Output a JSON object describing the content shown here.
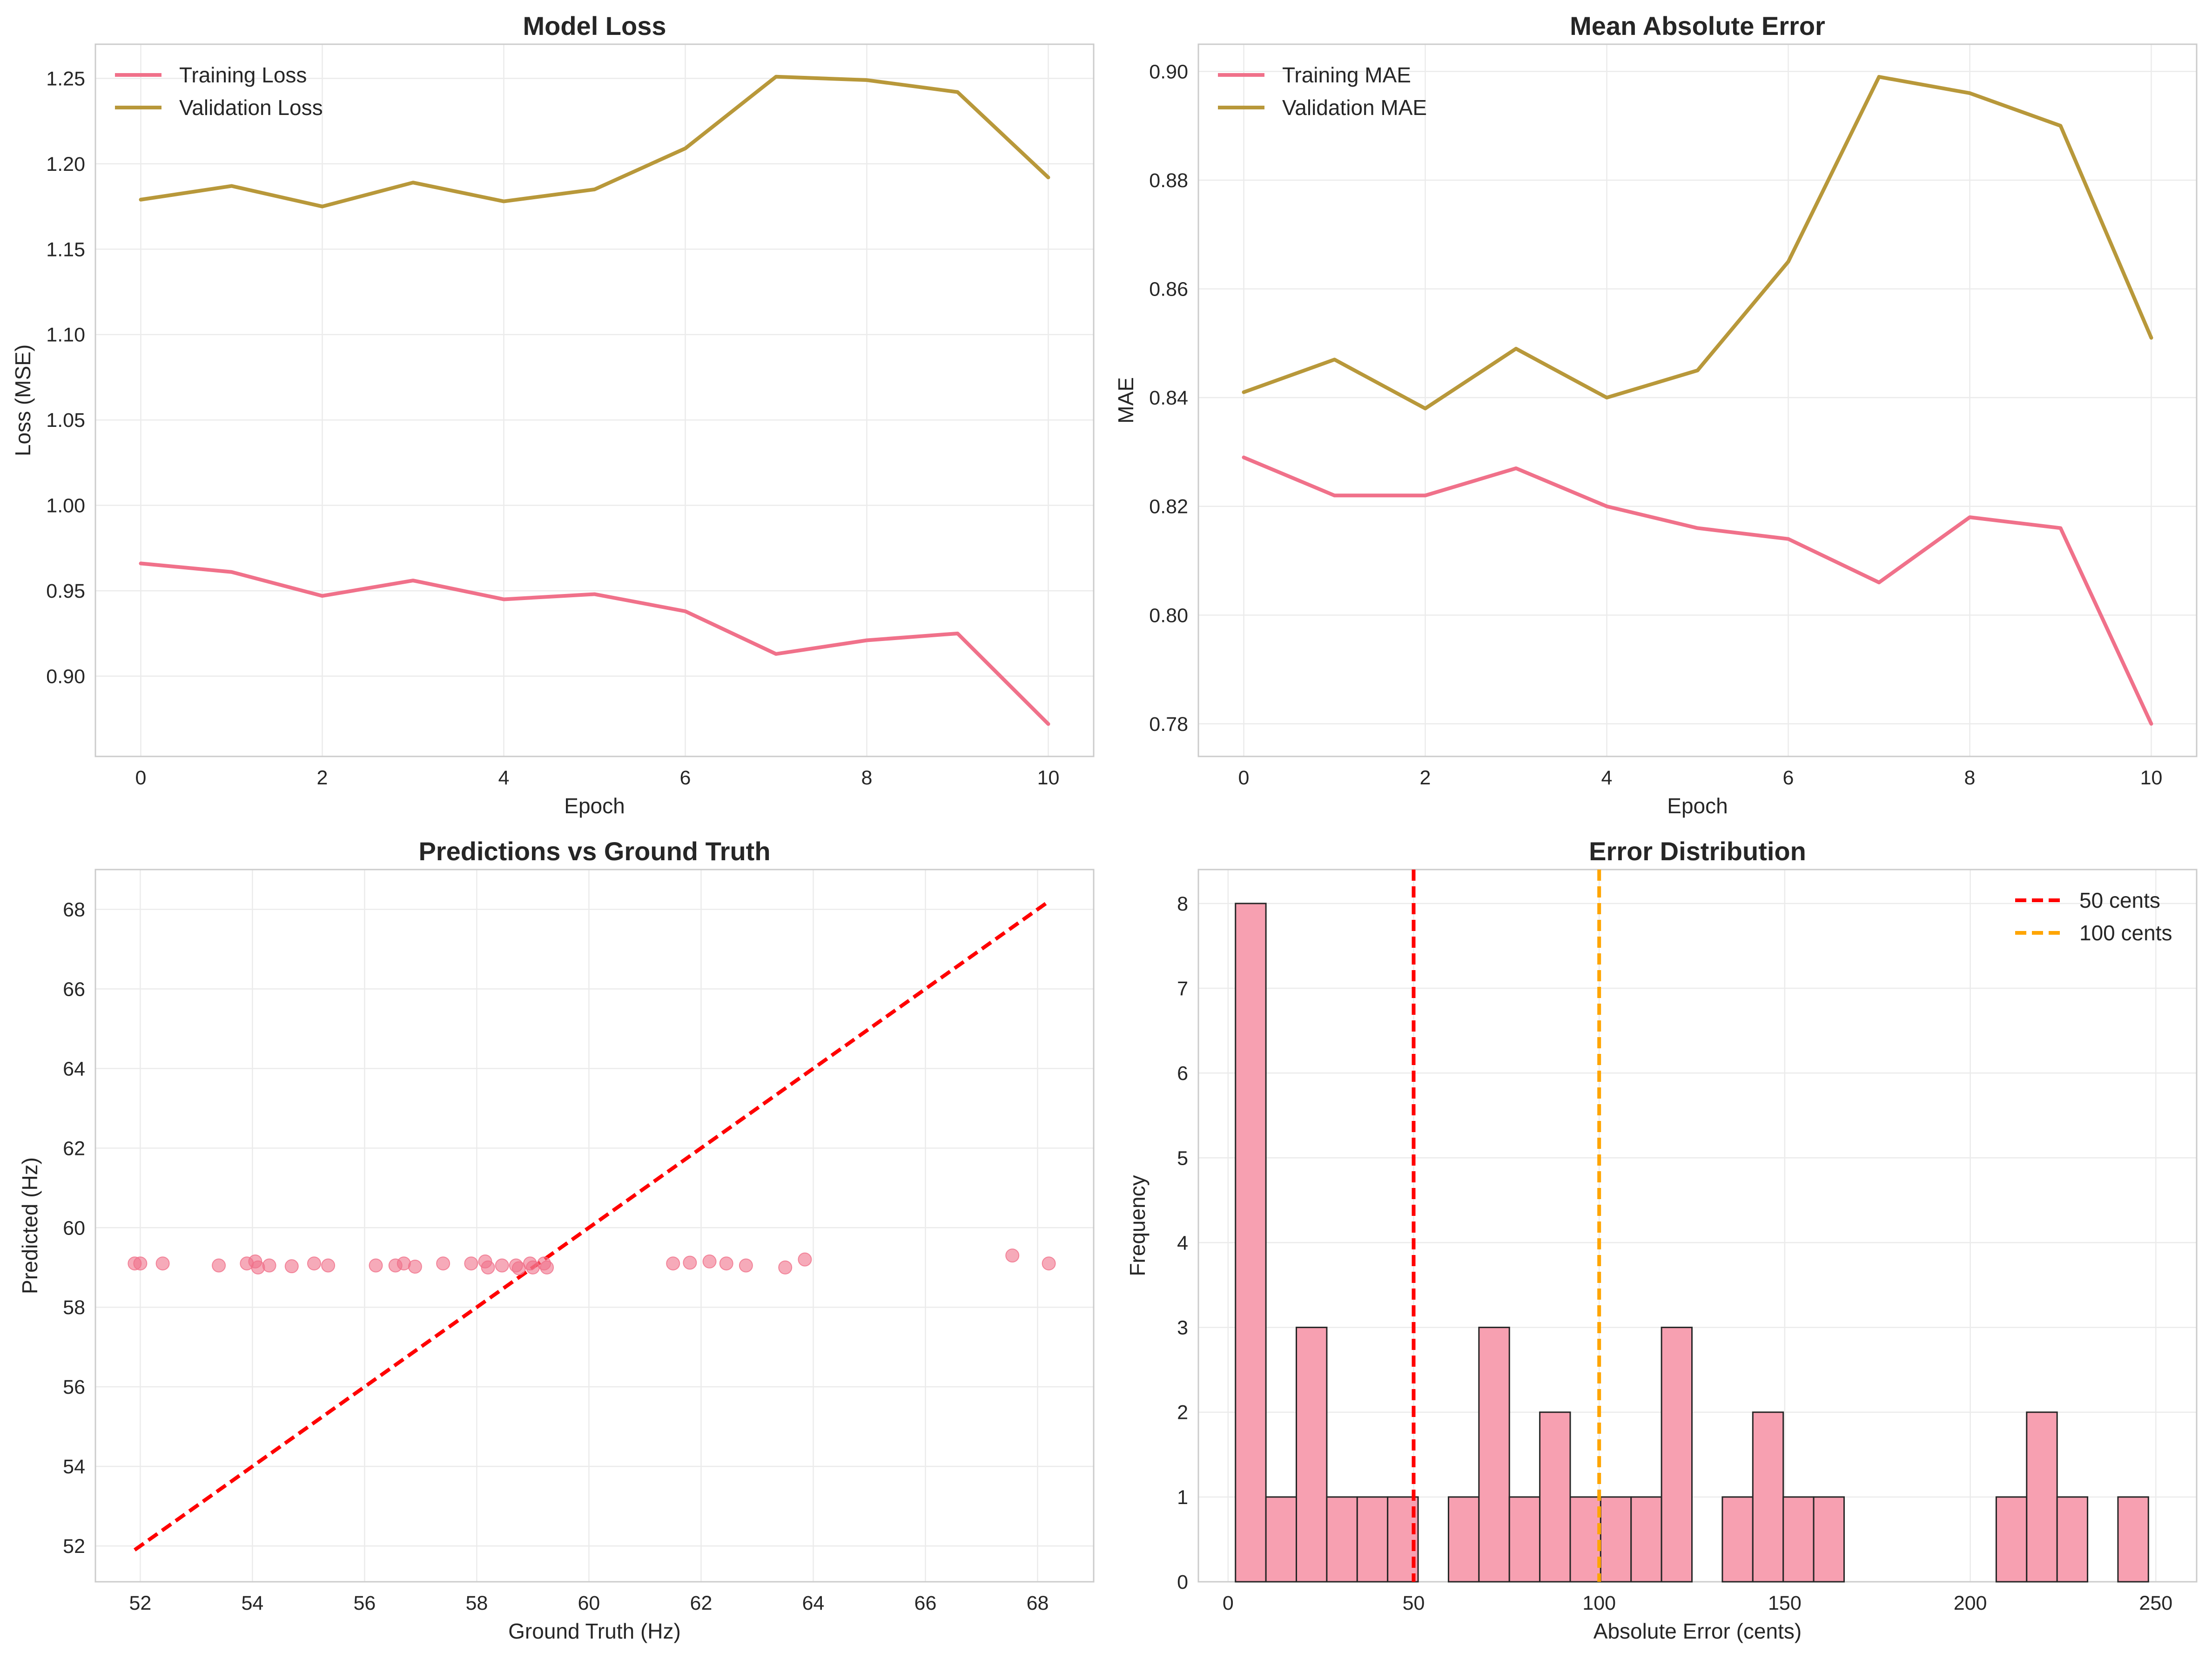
{
  "colors": {
    "training": "#f0718a",
    "validation": "#b8983a",
    "scatter": "#f0718a",
    "identity": "#ff0000",
    "hist_fill": "#f7a0b1",
    "hist_edge": "#262626",
    "line_50": "#ff0000",
    "line_100": "#ffa500",
    "grid": "#ebebeb",
    "frame": "#cccccc"
  },
  "chart_data": [
    {
      "id": "loss",
      "type": "line",
      "title": "Model Loss",
      "xlabel": "Epoch",
      "ylabel": "Loss (MSE)",
      "xlim": [
        -0.5,
        10.5
      ],
      "ylim": [
        0.853,
        1.27
      ],
      "xticks": [
        0,
        2,
        4,
        6,
        8,
        10
      ],
      "yticks": [
        0.9,
        0.95,
        1.0,
        1.05,
        1.1,
        1.15,
        1.2,
        1.25
      ],
      "ytick_labels": [
        "0.90",
        "0.95",
        "1.00",
        "1.05",
        "1.10",
        "1.15",
        "1.20",
        "1.25"
      ],
      "grid": true,
      "legend": "upper-left",
      "x": [
        0,
        1,
        2,
        3,
        4,
        5,
        6,
        7,
        8,
        9,
        10
      ],
      "series": [
        {
          "name": "Training Loss",
          "color_key": "training",
          "values": [
            0.966,
            0.961,
            0.947,
            0.956,
            0.945,
            0.948,
            0.938,
            0.913,
            0.921,
            0.925,
            0.872
          ]
        },
        {
          "name": "Validation Loss",
          "color_key": "validation",
          "values": [
            1.179,
            1.187,
            1.175,
            1.189,
            1.178,
            1.185,
            1.209,
            1.251,
            1.249,
            1.242,
            1.192
          ]
        }
      ]
    },
    {
      "id": "mae",
      "type": "line",
      "title": "Mean Absolute Error",
      "xlabel": "Epoch",
      "ylabel": "MAE",
      "xlim": [
        -0.5,
        10.5
      ],
      "ylim": [
        0.774,
        0.905
      ],
      "xticks": [
        0,
        2,
        4,
        6,
        8,
        10
      ],
      "yticks": [
        0.78,
        0.8,
        0.82,
        0.84,
        0.86,
        0.88,
        0.9
      ],
      "ytick_labels": [
        "0.78",
        "0.80",
        "0.82",
        "0.84",
        "0.86",
        "0.88",
        "0.90"
      ],
      "grid": true,
      "legend": "upper-left",
      "x": [
        0,
        1,
        2,
        3,
        4,
        5,
        6,
        7,
        8,
        9,
        10
      ],
      "series": [
        {
          "name": "Training MAE",
          "color_key": "training",
          "values": [
            0.829,
            0.822,
            0.822,
            0.827,
            0.82,
            0.816,
            0.814,
            0.806,
            0.818,
            0.816,
            0.78
          ]
        },
        {
          "name": "Validation MAE",
          "color_key": "validation",
          "values": [
            0.841,
            0.847,
            0.838,
            0.849,
            0.84,
            0.845,
            0.865,
            0.899,
            0.896,
            0.89,
            0.851
          ]
        }
      ]
    },
    {
      "id": "pred",
      "type": "scatter",
      "title": "Predictions vs Ground Truth",
      "xlabel": "Ground Truth (Hz)",
      "ylabel": "Predicted (Hz)",
      "xlim": [
        51.2,
        69.0
      ],
      "ylim": [
        51.1,
        69.0
      ],
      "xticks": [
        52,
        54,
        56,
        58,
        60,
        62,
        64,
        66,
        68
      ],
      "yticks": [
        52,
        54,
        56,
        58,
        60,
        62,
        64,
        66,
        68
      ],
      "grid": true,
      "identity_line": [
        51.9,
        68.2
      ],
      "points": [
        [
          51.9,
          59.1
        ],
        [
          52.0,
          59.1
        ],
        [
          52.4,
          59.1
        ],
        [
          53.4,
          59.05
        ],
        [
          53.9,
          59.1
        ],
        [
          54.05,
          59.15
        ],
        [
          54.1,
          59.0
        ],
        [
          54.3,
          59.05
        ],
        [
          54.7,
          59.03
        ],
        [
          55.1,
          59.1
        ],
        [
          55.35,
          59.05
        ],
        [
          56.2,
          59.05
        ],
        [
          56.55,
          59.05
        ],
        [
          56.7,
          59.1
        ],
        [
          56.9,
          59.02
        ],
        [
          57.4,
          59.1
        ],
        [
          57.9,
          59.1
        ],
        [
          58.15,
          59.15
        ],
        [
          58.2,
          59.0
        ],
        [
          58.45,
          59.05
        ],
        [
          58.7,
          59.05
        ],
        [
          58.75,
          58.98
        ],
        [
          58.95,
          59.1
        ],
        [
          59.0,
          59.0
        ],
        [
          59.2,
          59.1
        ],
        [
          59.25,
          59.0
        ],
        [
          61.5,
          59.1
        ],
        [
          61.8,
          59.12
        ],
        [
          62.15,
          59.15
        ],
        [
          62.45,
          59.1
        ],
        [
          62.8,
          59.05
        ],
        [
          63.5,
          59.0
        ],
        [
          63.85,
          59.2
        ],
        [
          67.55,
          59.3
        ],
        [
          68.2,
          59.1
        ]
      ]
    },
    {
      "id": "hist",
      "type": "bar",
      "title": "Error Distribution",
      "xlabel": "Absolute Error (cents)",
      "ylabel": "Frequency",
      "xlim": [
        -8,
        261
      ],
      "ylim": [
        0,
        8.4
      ],
      "xticks": [
        0,
        50,
        100,
        150,
        200,
        250
      ],
      "yticks": [
        0,
        1,
        2,
        3,
        4,
        5,
        6,
        7,
        8
      ],
      "grid": true,
      "legend": "upper-right",
      "bin_start": 2,
      "bin_width": 8.2,
      "counts": [
        8,
        1,
        3,
        1,
        1,
        1,
        0,
        1,
        3,
        1,
        2,
        1,
        1,
        1,
        3,
        0,
        1,
        2,
        1,
        1,
        0,
        0,
        0,
        0,
        0,
        1,
        2,
        1,
        0,
        1
      ],
      "vlines": [
        {
          "name": "50 cents",
          "x": 50,
          "color_key": "line_50"
        },
        {
          "name": "100 cents",
          "x": 100,
          "color_key": "line_100"
        }
      ]
    }
  ]
}
